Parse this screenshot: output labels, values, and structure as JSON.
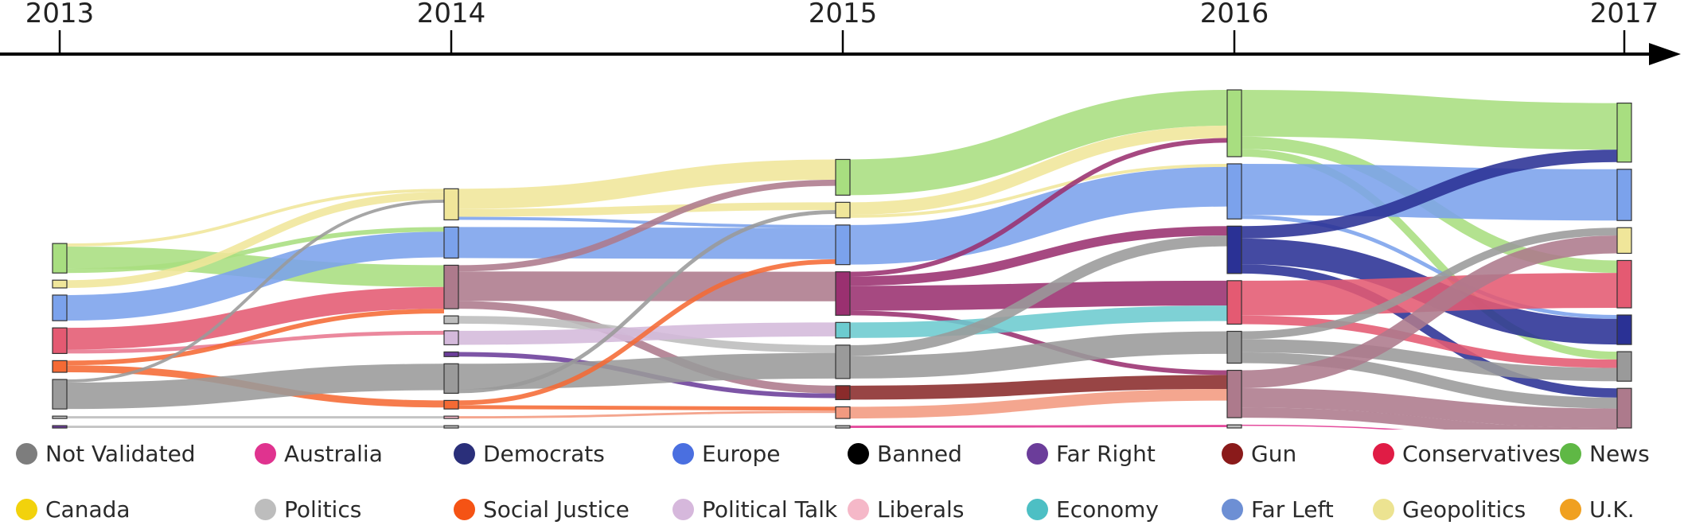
{
  "chart_data": {
    "type": "sankey",
    "title": "",
    "years": [
      "2013",
      "2014",
      "2015",
      "2016",
      "2017"
    ],
    "categories": {
      "news": {
        "label": "News",
        "color": "#a8de80"
      },
      "geopolitics": {
        "label": "Geopolitics",
        "color": "#f0e69a"
      },
      "europe": {
        "label": "Europe",
        "color": "#7ba2ec"
      },
      "farleft": {
        "label": "Far Left",
        "color": "#6b8fd3"
      },
      "democrats": {
        "label": "Democrats",
        "color": "#2a3195"
      },
      "gun": {
        "label": "Gun",
        "color": "#8a2b2b"
      },
      "conservatives": {
        "label": "Conservatives",
        "color": "#e45a72"
      },
      "liberals": {
        "label": "Liberals",
        "color": "#f2b3c4"
      },
      "australia": {
        "label": "Australia",
        "color": "#e0338f"
      },
      "socialjustice": {
        "label": "Social Justice",
        "color": "#f56a34"
      },
      "politicaltalk": {
        "label": "Political Talk",
        "color": "#d4b9db"
      },
      "economy": {
        "label": "Economy",
        "color": "#6ccbcf"
      },
      "notvalidated": {
        "label": "Not Validated",
        "color": "#9a9a9a"
      },
      "politics": {
        "label": "Politics",
        "color": "#bcbcbc"
      },
      "farright": {
        "label": "Far Right",
        "color": "#6b3d9a"
      },
      "canada": {
        "label": "Canada",
        "color": "#f2cf1d"
      },
      "uk": {
        "label": "U.K.",
        "color": "#f0a020"
      },
      "banned": {
        "label": "Banned",
        "color": "#0a0a0a"
      },
      "mauve": {
        "label": "",
        "color": "#ad7a8c"
      },
      "plum": {
        "label": "",
        "color": "#9a3070"
      },
      "salmon": {
        "label": "",
        "color": "#f29a80"
      },
      "rose": {
        "label": "",
        "color": "#e87890"
      }
    },
    "nodes": [
      {
        "id": "n13_news",
        "year": 0,
        "cat": "news",
        "value": 38
      },
      {
        "id": "n13_geo",
        "year": 0,
        "cat": "geopolitics",
        "value": 10
      },
      {
        "id": "n13_eur",
        "year": 0,
        "cat": "europe",
        "value": 33
      },
      {
        "id": "n13_cons",
        "year": 0,
        "cat": "conservatives",
        "value": 33
      },
      {
        "id": "n13_sj",
        "year": 0,
        "cat": "socialjustice",
        "value": 15
      },
      {
        "id": "n13_nv",
        "year": 0,
        "cat": "notvalidated",
        "value": 38
      },
      {
        "id": "n13_pol",
        "year": 0,
        "cat": "politics",
        "value": 3
      },
      {
        "id": "n13_fr",
        "year": 0,
        "cat": "farright",
        "value": 3
      },
      {
        "id": "n14_geo",
        "year": 1,
        "cat": "geopolitics",
        "value": 40
      },
      {
        "id": "n14_eur",
        "year": 1,
        "cat": "europe",
        "value": 40
      },
      {
        "id": "n14_mauve",
        "year": 1,
        "cat": "mauve",
        "value": 56
      },
      {
        "id": "n14_pol",
        "year": 1,
        "cat": "politics",
        "value": 10
      },
      {
        "id": "n14_pt",
        "year": 1,
        "cat": "politicaltalk",
        "value": 18
      },
      {
        "id": "n14_fr",
        "year": 1,
        "cat": "farright",
        "value": 6
      },
      {
        "id": "n14_nv",
        "year": 1,
        "cat": "notvalidated",
        "value": 38
      },
      {
        "id": "n14_sj",
        "year": 1,
        "cat": "socialjustice",
        "value": 11
      },
      {
        "id": "n14_lib",
        "year": 1,
        "cat": "liberals",
        "value": 3
      },
      {
        "id": "n14_x",
        "year": 1,
        "cat": "politics",
        "value": 3
      },
      {
        "id": "n15_news",
        "year": 2,
        "cat": "news",
        "value": 46
      },
      {
        "id": "n15_geo",
        "year": 2,
        "cat": "geopolitics",
        "value": 20
      },
      {
        "id": "n15_eur",
        "year": 2,
        "cat": "europe",
        "value": 51
      },
      {
        "id": "n15_plum",
        "year": 2,
        "cat": "plum",
        "value": 56
      },
      {
        "id": "n15_eco",
        "year": 2,
        "cat": "economy",
        "value": 20
      },
      {
        "id": "n15_nv",
        "year": 2,
        "cat": "notvalidated",
        "value": 43
      },
      {
        "id": "n15_gun",
        "year": 2,
        "cat": "gun",
        "value": 18
      },
      {
        "id": "n15_salmon",
        "year": 2,
        "cat": "salmon",
        "value": 15
      },
      {
        "id": "n15_x",
        "year": 2,
        "cat": "politics",
        "value": 3
      },
      {
        "id": "n16_news",
        "year": 3,
        "cat": "news",
        "value": 86
      },
      {
        "id": "n16_eur",
        "year": 3,
        "cat": "europe",
        "value": 71
      },
      {
        "id": "n16_dem",
        "year": 3,
        "cat": "democrats",
        "value": 61
      },
      {
        "id": "n16_cons",
        "year": 3,
        "cat": "conservatives",
        "value": 56
      },
      {
        "id": "n16_nv",
        "year": 3,
        "cat": "notvalidated",
        "value": 41
      },
      {
        "id": "n16_mauve",
        "year": 3,
        "cat": "mauve",
        "value": 61
      },
      {
        "id": "n16_x",
        "year": 3,
        "cat": "politics",
        "value": 4
      },
      {
        "id": "n17_news",
        "year": 4,
        "cat": "news",
        "value": 76
      },
      {
        "id": "n17_eur",
        "year": 4,
        "cat": "europe",
        "value": 66
      },
      {
        "id": "n17_geo",
        "year": 4,
        "cat": "geopolitics",
        "value": 33
      },
      {
        "id": "n17_cons",
        "year": 4,
        "cat": "conservatives",
        "value": 61
      },
      {
        "id": "n17_dem",
        "year": 4,
        "cat": "democrats",
        "value": 38
      },
      {
        "id": "n17_nv",
        "year": 4,
        "cat": "notvalidated",
        "value": 38
      },
      {
        "id": "n17_mauve",
        "year": 4,
        "cat": "mauve",
        "value": 51
      }
    ],
    "links": [
      {
        "s": "n13_news",
        "t": "n14_geo",
        "v": 4,
        "cat": "geopolitics"
      },
      {
        "s": "n13_news",
        "t": "n14_mauve",
        "v": 28,
        "cat": "news"
      },
      {
        "s": "n13_news",
        "t": "n14_eur",
        "v": 6,
        "cat": "news"
      },
      {
        "s": "n13_geo",
        "t": "n14_geo",
        "v": 10,
        "cat": "geopolitics"
      },
      {
        "s": "n13_eur",
        "t": "n14_eur",
        "v": 33,
        "cat": "europe"
      },
      {
        "s": "n13_cons",
        "t": "n14_mauve",
        "v": 28,
        "cat": "conservatives"
      },
      {
        "s": "n13_cons",
        "t": "n14_pt",
        "v": 5,
        "cat": "rose"
      },
      {
        "s": "n13_sj",
        "t": "n14_mauve",
        "v": 6,
        "cat": "socialjustice"
      },
      {
        "s": "n13_sj",
        "t": "n14_sj",
        "v": 9,
        "cat": "socialjustice"
      },
      {
        "s": "n13_nv",
        "t": "n14_geo",
        "v": 4,
        "cat": "notvalidated"
      },
      {
        "s": "n13_nv",
        "t": "n14_nv",
        "v": 34,
        "cat": "notvalidated"
      },
      {
        "s": "n13_pol",
        "t": "n14_lib",
        "v": 3,
        "cat": "politics"
      },
      {
        "s": "n13_fr",
        "t": "n14_x",
        "v": 3,
        "cat": "politics"
      },
      {
        "s": "n14_geo",
        "t": "n15_news",
        "v": 26,
        "cat": "geopolitics"
      },
      {
        "s": "n14_geo",
        "t": "n15_geo",
        "v": 10,
        "cat": "geopolitics"
      },
      {
        "s": "n14_geo",
        "t": "n15_eur",
        "v": 4,
        "cat": "europe"
      },
      {
        "s": "n14_eur",
        "t": "n15_eur",
        "v": 40,
        "cat": "europe"
      },
      {
        "s": "n14_mauve",
        "t": "n15_news",
        "v": 8,
        "cat": "mauve"
      },
      {
        "s": "n14_mauve",
        "t": "n15_plum",
        "v": 38,
        "cat": "mauve"
      },
      {
        "s": "n14_mauve",
        "t": "n15_gun",
        "v": 10,
        "cat": "mauve"
      },
      {
        "s": "n14_pol",
        "t": "n15_nv",
        "v": 10,
        "cat": "politics"
      },
      {
        "s": "n14_pt",
        "t": "n15_eco",
        "v": 18,
        "cat": "politicaltalk"
      },
      {
        "s": "n14_fr",
        "t": "n15_gun",
        "v": 6,
        "cat": "farright"
      },
      {
        "s": "n14_nv",
        "t": "n15_nv",
        "v": 33,
        "cat": "notvalidated"
      },
      {
        "s": "n14_nv",
        "t": "n15_geo",
        "v": 5,
        "cat": "notvalidated"
      },
      {
        "s": "n14_sj",
        "t": "n15_eur",
        "v": 6,
        "cat": "socialjustice"
      },
      {
        "s": "n14_sj",
        "t": "n15_salmon",
        "v": 5,
        "cat": "socialjustice"
      },
      {
        "s": "n14_lib",
        "t": "n15_salmon",
        "v": 3,
        "cat": "salmon"
      },
      {
        "s": "n14_x",
        "t": "n15_x",
        "v": 3,
        "cat": "politics"
      },
      {
        "s": "n15_news",
        "t": "n16_news",
        "v": 46,
        "cat": "news"
      },
      {
        "s": "n15_geo",
        "t": "n16_news",
        "v": 16,
        "cat": "geopolitics"
      },
      {
        "s": "n15_geo",
        "t": "n16_eur",
        "v": 4,
        "cat": "geopolitics"
      },
      {
        "s": "n15_eur",
        "t": "n16_eur",
        "v": 51,
        "cat": "europe"
      },
      {
        "s": "n15_plum",
        "t": "n16_news",
        "v": 6,
        "cat": "plum"
      },
      {
        "s": "n15_plum",
        "t": "n16_dem",
        "v": 12,
        "cat": "plum"
      },
      {
        "s": "n15_plum",
        "t": "n16_cons",
        "v": 32,
        "cat": "plum"
      },
      {
        "s": "n15_plum",
        "t": "n16_mauve",
        "v": 6,
        "cat": "plum"
      },
      {
        "s": "n15_eco",
        "t": "n16_cons",
        "v": 20,
        "cat": "economy"
      },
      {
        "s": "n15_nv",
        "t": "n16_dem",
        "v": 14,
        "cat": "notvalidated"
      },
      {
        "s": "n15_nv",
        "t": "n16_nv",
        "v": 29,
        "cat": "notvalidated"
      },
      {
        "s": "n15_gun",
        "t": "n16_mauve",
        "v": 18,
        "cat": "gun"
      },
      {
        "s": "n15_salmon",
        "t": "n16_mauve",
        "v": 15,
        "cat": "salmon"
      },
      {
        "s": "n15_x",
        "t": "n16_x",
        "v": 3,
        "cat": "australia"
      },
      {
        "s": "n16_news",
        "t": "n17_news",
        "v": 60,
        "cat": "news"
      },
      {
        "s": "n16_news",
        "t": "n17_cons",
        "v": 16,
        "cat": "news"
      },
      {
        "s": "n16_news",
        "t": "n17_nv",
        "v": 10,
        "cat": "news"
      },
      {
        "s": "n16_eur",
        "t": "n17_eur",
        "v": 66,
        "cat": "europe"
      },
      {
        "s": "n16_eur",
        "t": "n17_dem",
        "v": 5,
        "cat": "europe"
      },
      {
        "s": "n16_dem",
        "t": "n17_news",
        "v": 16,
        "cat": "democrats"
      },
      {
        "s": "n16_dem",
        "t": "n17_dem",
        "v": 33,
        "cat": "democrats"
      },
      {
        "s": "n16_dem",
        "t": "n17_mauve",
        "v": 12,
        "cat": "democrats"
      },
      {
        "s": "n16_cons",
        "t": "n17_cons",
        "v": 45,
        "cat": "conservatives"
      },
      {
        "s": "n16_cons",
        "t": "n17_nv",
        "v": 11,
        "cat": "conservatives"
      },
      {
        "s": "n16_nv",
        "t": "n17_geo",
        "v": 10,
        "cat": "notvalidated"
      },
      {
        "s": "n16_nv",
        "t": "n17_nv",
        "v": 17,
        "cat": "notvalidated"
      },
      {
        "s": "n16_nv",
        "t": "n17_mauve",
        "v": 14,
        "cat": "notvalidated"
      },
      {
        "s": "n16_mauve",
        "t": "n17_geo",
        "v": 23,
        "cat": "mauve"
      },
      {
        "s": "n16_mauve",
        "t": "n17_mauve",
        "v": 25,
        "cat": "mauve"
      },
      {
        "s": "n16_mauve",
        "t": "n17_mauve",
        "v": 13,
        "cat": "mauve"
      },
      {
        "s": "n16_x",
        "t": "n17_mauve",
        "v": 1,
        "cat": "australia"
      }
    ]
  },
  "legend": [
    {
      "label": "Not Validated",
      "color": "#7d7d7d"
    },
    {
      "label": "Australia",
      "color": "#e0338f"
    },
    {
      "label": "Democrats",
      "color": "#2a2f7a"
    },
    {
      "label": "Europe",
      "color": "#4a6fe0"
    },
    {
      "label": "Banned",
      "color": "#000000"
    },
    {
      "label": "Far Right",
      "color": "#6b3d9a"
    },
    {
      "label": "Gun",
      "color": "#8a1a1a"
    },
    {
      "label": "Conservatives",
      "color": "#e01c45"
    },
    {
      "label": "News",
      "color": "#5fb845"
    },
    {
      "label": "Canada",
      "color": "#f2d20c"
    },
    {
      "label": "Politics",
      "color": "#bdbdbd"
    },
    {
      "label": "Social Justice",
      "color": "#f55314"
    },
    {
      "label": "Political Talk",
      "color": "#d6b8dc"
    },
    {
      "label": "Liberals",
      "color": "#f5b8c8"
    },
    {
      "label": "Economy",
      "color": "#4dbfc4"
    },
    {
      "label": "Far Left",
      "color": "#6d8fd4"
    },
    {
      "label": "Geopolitics",
      "color": "#ece391"
    },
    {
      "label": "U.K.",
      "color": "#f0a020"
    }
  ]
}
